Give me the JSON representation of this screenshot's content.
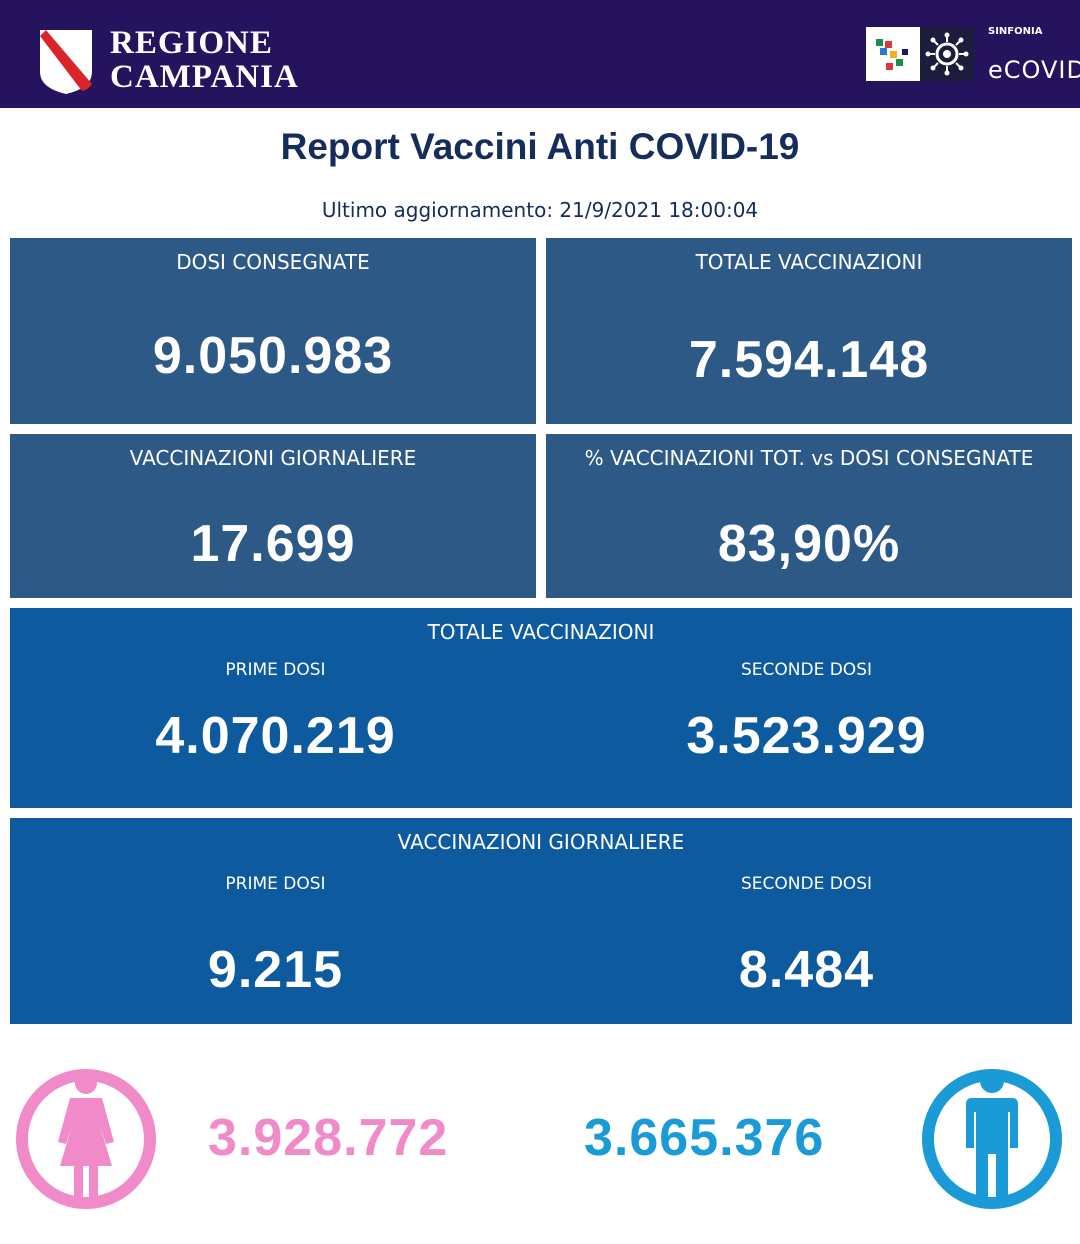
{
  "header": {
    "region_line1": "REGIONE",
    "region_line2": "CAMPANIA",
    "logo_small": "SINFONIA",
    "logo_name": "eCOVID",
    "bg_color": "#25135e"
  },
  "report": {
    "title": "Report Vaccini Anti COVID-19",
    "updated": "Ultimo aggiornamento: 21/9/2021  18:00:04"
  },
  "cards": {
    "dosi_consegnate": {
      "label": "DOSI  CONSEGNATE",
      "value": "9.050.983"
    },
    "totale_vaccinazioni": {
      "label": "TOTALE VACCINAZIONI",
      "value": "7.594.148"
    },
    "vaccinazioni_giornaliere": {
      "label": "VACCINAZIONI GIORNALIERE",
      "value": "17.699"
    },
    "percentuale": {
      "label": "% VACCINAZIONI TOT. vs DOSI CONSEGNATE",
      "value": "83,90%"
    }
  },
  "totale_section": {
    "label": "TOTALE VACCINAZIONI",
    "prime_label": "PRIME DOSI",
    "prime_value": "4.070.219",
    "seconde_label": "SECONDE DOSI",
    "seconde_value": "3.523.929"
  },
  "giornaliere_section": {
    "label": "VACCINAZIONI GIORNALIERE",
    "prime_label": "PRIME DOSI",
    "prime_value": "9.215",
    "seconde_label": "SECONDE DOSI",
    "seconde_value": "8.484"
  },
  "gender": {
    "female_value": "3.928.772",
    "female_color": "#f08ac8",
    "male_value": "3.665.376",
    "male_color": "#1b9ad8"
  },
  "colors": {
    "card": "#2d5987",
    "wide": "#0e5a9e",
    "title": "#142d5a"
  }
}
